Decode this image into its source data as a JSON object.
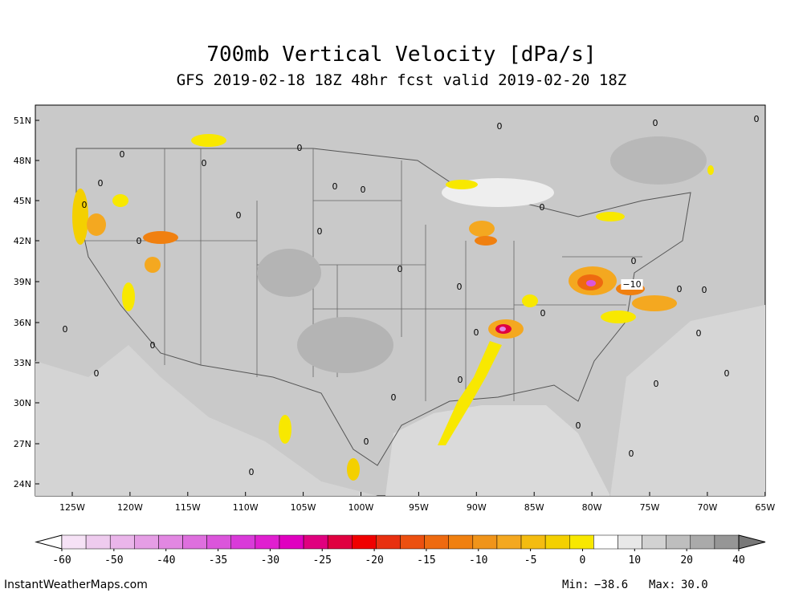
{
  "header": {
    "title": "700mb Vertical Velocity [dPa/s]",
    "subtitle": "GFS 2019-02-18 18Z 48hr fcst valid 2019-02-20 18Z"
  },
  "map": {
    "lat_labels": [
      "51N",
      "48N",
      "45N",
      "42N",
      "39N",
      "36N",
      "33N",
      "30N",
      "27N",
      "24N"
    ],
    "lon_labels": [
      "125W",
      "120W",
      "115W",
      "110W",
      "105W",
      "100W",
      "95W",
      "90W",
      "85W",
      "80W",
      "75W",
      "70W",
      "65W"
    ],
    "contour_labels": [
      "0",
      "0",
      "0",
      "0",
      "0",
      "0",
      "0",
      "0",
      "0",
      "0",
      "0",
      "0",
      "0",
      "0",
      "0",
      "0",
      "0",
      "0",
      "0",
      "0",
      "0",
      "0",
      "0",
      "0",
      "0",
      "0",
      "0",
      "0",
      "0",
      "0",
      "0",
      "0",
      "0",
      "−10"
    ]
  },
  "colorbar": {
    "ticks": [
      -60,
      -50,
      -40,
      -35,
      -30,
      -25,
      -20,
      -15,
      -10,
      -5,
      0,
      10,
      20,
      40
    ],
    "colors": [
      "#f6e2f6",
      "#eecbee",
      "#eab5ea",
      "#e59ee5",
      "#e287e2",
      "#de6fde",
      "#db55db",
      "#d93ad9",
      "#e01fd0",
      "#e000c0",
      "#e0007f",
      "#e00040",
      "#f00000",
      "#e83010",
      "#ec5010",
      "#ee6a10",
      "#f08010",
      "#f0941a",
      "#f4a820",
      "#f4bc10",
      "#f4d000",
      "#f8e800",
      "#ffffff",
      "#e8e8e8",
      "#d2d2d2",
      "#bebebe",
      "#aaaaaa",
      "#969696"
    ],
    "left_arrow": "#ffffff",
    "right_arrow": "#787878"
  },
  "footer": {
    "site": "InstantWeatherMaps.com",
    "min_label": "Min:",
    "min_value": "−38.6",
    "max_label": "Max:",
    "max_value": "30.0"
  }
}
